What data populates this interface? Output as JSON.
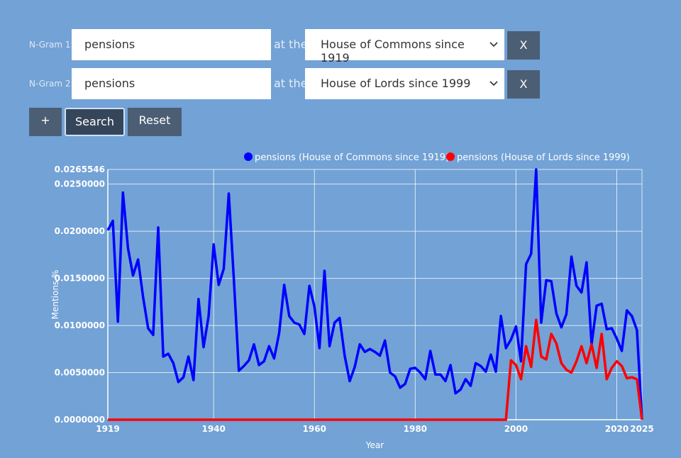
{
  "form": {
    "rows": [
      {
        "label": "N-Gram 1:",
        "query": "pensions",
        "connector": "at the",
        "corpus": "House of Commons since 1919",
        "remove": "X"
      },
      {
        "label": "N-Gram 2:",
        "query": "pensions",
        "connector": "at the",
        "corpus": "House of Lords since 1999",
        "remove": "X"
      }
    ],
    "buttons": [
      "+",
      "Search",
      "Reset"
    ]
  },
  "chart_data": {
    "type": "line",
    "x_label": "Year",
    "y_label": "Mentions %",
    "x": [
      1919,
      1920,
      1921,
      1922,
      1923,
      1924,
      1925,
      1926,
      1927,
      1928,
      1929,
      1930,
      1931,
      1932,
      1933,
      1934,
      1935,
      1936,
      1937,
      1938,
      1939,
      1940,
      1941,
      1942,
      1943,
      1944,
      1945,
      1946,
      1947,
      1948,
      1949,
      1950,
      1951,
      1952,
      1953,
      1954,
      1955,
      1956,
      1957,
      1958,
      1959,
      1960,
      1961,
      1962,
      1963,
      1964,
      1965,
      1966,
      1967,
      1968,
      1969,
      1970,
      1971,
      1972,
      1973,
      1974,
      1975,
      1976,
      1977,
      1978,
      1979,
      1980,
      1981,
      1982,
      1983,
      1984,
      1985,
      1986,
      1987,
      1988,
      1989,
      1990,
      1991,
      1992,
      1993,
      1994,
      1995,
      1996,
      1997,
      1998,
      1999,
      2000,
      2001,
      2002,
      2003,
      2004,
      2005,
      2006,
      2007,
      2008,
      2009,
      2010,
      2011,
      2012,
      2013,
      2014,
      2015,
      2016,
      2017,
      2018,
      2019,
      2020,
      2021,
      2022,
      2023,
      2024,
      2025
    ],
    "series": [
      {
        "name": "pensions (House of Commons since 1919)",
        "color": "#0000ff",
        "values": [
          0.0201,
          0.0211,
          0.0104,
          0.0241,
          0.0182,
          0.0153,
          0.017,
          0.013,
          0.0097,
          0.009,
          0.0204,
          0.0067,
          0.007,
          0.006,
          0.004,
          0.0045,
          0.0067,
          0.0042,
          0.0128,
          0.0077,
          0.011,
          0.0186,
          0.0143,
          0.016,
          0.024,
          0.015,
          0.0052,
          0.0057,
          0.0063,
          0.008,
          0.0058,
          0.0062,
          0.0078,
          0.0065,
          0.0092,
          0.0143,
          0.011,
          0.0103,
          0.0101,
          0.0091,
          0.0142,
          0.012,
          0.0076,
          0.0158,
          0.0078,
          0.0103,
          0.0108,
          0.0068,
          0.0041,
          0.0056,
          0.008,
          0.0072,
          0.0075,
          0.0072,
          0.0068,
          0.0084,
          0.005,
          0.0046,
          0.0034,
          0.0038,
          0.0054,
          0.0055,
          0.005,
          0.0043,
          0.0073,
          0.0048,
          0.0048,
          0.0041,
          0.0058,
          0.0028,
          0.0032,
          0.0043,
          0.0036,
          0.006,
          0.0057,
          0.0051,
          0.0069,
          0.0051,
          0.011,
          0.0076,
          0.0085,
          0.0099,
          0.0062,
          0.0165,
          0.0176,
          0.0265546,
          0.0103,
          0.0148,
          0.0147,
          0.0113,
          0.0098,
          0.0112,
          0.0173,
          0.0142,
          0.0135,
          0.0167,
          0.008,
          0.0121,
          0.0123,
          0.0096,
          0.0097,
          0.0086,
          0.0073,
          0.0116,
          0.011,
          0.0095,
          0
        ]
      },
      {
        "name": "pensions (House of Lords since 1999)",
        "color": "#ff0000",
        "values": [
          0,
          0,
          0,
          0,
          0,
          0,
          0,
          0,
          0,
          0,
          0,
          0,
          0,
          0,
          0,
          0,
          0,
          0,
          0,
          0,
          0,
          0,
          0,
          0,
          0,
          0,
          0,
          0,
          0,
          0,
          0,
          0,
          0,
          0,
          0,
          0,
          0,
          0,
          0,
          0,
          0,
          0,
          0,
          0,
          0,
          0,
          0,
          0,
          0,
          0,
          0,
          0,
          0,
          0,
          0,
          0,
          0,
          0,
          0,
          0,
          0,
          0,
          0,
          0,
          0,
          0,
          0,
          0,
          0,
          0,
          0,
          0,
          0,
          0,
          0,
          0,
          0,
          0,
          0,
          0,
          0.0063,
          0.0058,
          0.0043,
          0.0078,
          0.0056,
          0.0106,
          0.0067,
          0.0064,
          0.0091,
          0.0081,
          0.006,
          0.0053,
          0.005,
          0.0062,
          0.0078,
          0.006,
          0.008,
          0.0055,
          0.0091,
          0.0043,
          0.0055,
          0.0062,
          0.0057,
          0.0044,
          0.0045,
          0.0043,
          0
        ]
      }
    ],
    "xlim": [
      1919,
      2025
    ],
    "xticks": [
      1919,
      1940,
      1960,
      1980,
      2000,
      2020,
      2025
    ],
    "ylim": [
      0,
      0.0265546
    ],
    "yticks": [
      {
        "value": 0,
        "label": "0.0000000"
      },
      {
        "value": 0.005,
        "label": "0.0050000"
      },
      {
        "value": 0.01,
        "label": "0.0100000"
      },
      {
        "value": 0.015,
        "label": "0.0150000"
      },
      {
        "value": 0.02,
        "label": "0.0200000"
      },
      {
        "value": 0.025,
        "label": "0.0250000"
      },
      0.0265546
    ],
    "grid": true,
    "legend": "top"
  }
}
